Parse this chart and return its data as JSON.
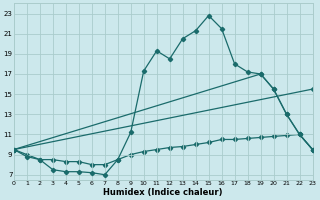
{
  "xlabel": "Humidex (Indice chaleur)",
  "background_color": "#cce8ec",
  "grid_color": "#aacccc",
  "line_color": "#1a6b6b",
  "x_ticks": [
    0,
    1,
    2,
    3,
    4,
    5,
    6,
    7,
    8,
    9,
    10,
    11,
    12,
    13,
    14,
    15,
    16,
    17,
    18,
    19,
    20,
    21,
    22,
    23
  ],
  "y_ticks": [
    7,
    9,
    11,
    13,
    15,
    17,
    19,
    21,
    23
  ],
  "xlim": [
    0,
    23
  ],
  "ylim": [
    6.5,
    24.0
  ],
  "line1_x": [
    0,
    1,
    2,
    3,
    4,
    5,
    6,
    7,
    8,
    9,
    10,
    11,
    12,
    13,
    14,
    15,
    16,
    17,
    18,
    19,
    20,
    21,
    22,
    23
  ],
  "line1_y": [
    9.5,
    8.8,
    8.5,
    7.5,
    7.3,
    7.3,
    7.2,
    7.0,
    8.5,
    11.2,
    17.3,
    19.3,
    18.5,
    20.5,
    21.3,
    22.8,
    21.5,
    18.0,
    17.2,
    17.0,
    15.5,
    13.0,
    11.0,
    9.5
  ],
  "line2_x": [
    0,
    19,
    20,
    21,
    22,
    23
  ],
  "line2_y": [
    9.5,
    17.0,
    15.5,
    13.0,
    11.0,
    9.5
  ],
  "line3_x": [
    0,
    23
  ],
  "line3_y": [
    9.5,
    15.5
  ],
  "line4_x": [
    0,
    1,
    2,
    3,
    4,
    5,
    6,
    7,
    8,
    9,
    10,
    11,
    12,
    13,
    14,
    15,
    16,
    17,
    18,
    19,
    20,
    21,
    22,
    23
  ],
  "line4_y": [
    9.5,
    9.0,
    8.5,
    8.5,
    8.3,
    8.3,
    8.0,
    8.0,
    8.5,
    9.0,
    9.3,
    9.5,
    9.7,
    9.8,
    10.0,
    10.2,
    10.5,
    10.5,
    10.6,
    10.7,
    10.8,
    10.9,
    11.0,
    9.5
  ]
}
